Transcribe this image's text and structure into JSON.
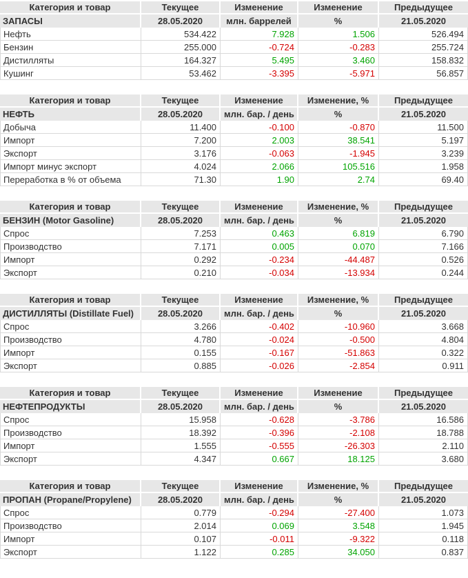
{
  "report": {
    "current_date": "28.05.2020",
    "previous_date": "21.05.2020",
    "colors": {
      "positive": "#00a400",
      "negative": "#d40000",
      "header_bg": "#e7e7e7",
      "text": "#333333",
      "border": "#d9d9d9"
    },
    "tables": [
      {
        "id": "zapasy",
        "columns": [
          "Категория и товар",
          "Текущее",
          "Изменение",
          "Изменение",
          "Предыдущее"
        ],
        "subheader": [
          "ЗАПАСЫ",
          "28.05.2020",
          "млн. баррелей",
          "%",
          "21.05.2020"
        ],
        "rows": [
          [
            "Нефть",
            "534.422",
            "7.928",
            "1.506",
            "526.494"
          ],
          [
            "Бензин",
            "255.000",
            "-0.724",
            "-0.283",
            "255.724"
          ],
          [
            "Дистилляты",
            "164.327",
            "5.495",
            "3.460",
            "158.832"
          ],
          [
            "Кушинг",
            "53.462",
            "-3.395",
            "-5.971",
            "56.857"
          ]
        ]
      },
      {
        "id": "neft",
        "columns": [
          "Категория и товар",
          "Текущее",
          "Изменение",
          "Изменение, %",
          "Предыдущее"
        ],
        "subheader": [
          "НЕФТЬ",
          "28.05.2020",
          "млн. бар. / день",
          "%",
          "21.05.2020"
        ],
        "rows": [
          [
            "Добыча",
            "11.400",
            "-0.100",
            "-0.870",
            "11.500"
          ],
          [
            "Импорт",
            "7.200",
            "2.003",
            "38.541",
            "5.197"
          ],
          [
            "Экспорт",
            "3.176",
            "-0.063",
            "-1.945",
            "3.239"
          ],
          [
            "Импорт минус экспорт",
            "4.024",
            "2.066",
            "105.516",
            "1.958"
          ],
          [
            "Переработка в % от объема",
            "71.30",
            "1.90",
            "2.74",
            "69.40"
          ]
        ]
      },
      {
        "id": "benzin",
        "columns": [
          "Категория и товар",
          "Текущее",
          "Изменение",
          "Изменение, %",
          "Предыдущее"
        ],
        "subheader": [
          "БЕНЗИН (Motor Gasoline)",
          "28.05.2020",
          "млн. бар. / день",
          "%",
          "21.05.2020"
        ],
        "rows": [
          [
            "Спрос",
            "7.253",
            "0.463",
            "6.819",
            "6.790"
          ],
          [
            "Производство",
            "7.171",
            "0.005",
            "0.070",
            "7.166"
          ],
          [
            "Импорт",
            "0.292",
            "-0.234",
            "-44.487",
            "0.526"
          ],
          [
            "Экспорт",
            "0.210",
            "-0.034",
            "-13.934",
            "0.244"
          ]
        ]
      },
      {
        "id": "distillyaty",
        "columns": [
          "Категория и товар",
          "Текущее",
          "Изменение",
          "Изменение, %",
          "Предыдущее"
        ],
        "subheader": [
          "ДИСТИЛЛЯТЫ (Distillate Fuel)",
          "28.05.2020",
          "млн. бар. / день",
          "%",
          "21.05.2020"
        ],
        "rows": [
          [
            "Спрос",
            "3.266",
            "-0.402",
            "-10.960",
            "3.668"
          ],
          [
            "Производство",
            "4.780",
            "-0.024",
            "-0.500",
            "4.804"
          ],
          [
            "Импорт",
            "0.155",
            "-0.167",
            "-51.863",
            "0.322"
          ],
          [
            "Экспорт",
            "0.885",
            "-0.026",
            "-2.854",
            "0.911"
          ]
        ]
      },
      {
        "id": "nefteprodukty",
        "columns": [
          "Категория и товар",
          "Текущее",
          "Изменение",
          "Изменение",
          "Предыдущее"
        ],
        "subheader": [
          "НЕФТЕПРОДУКТЫ",
          "28.05.2020",
          "млн. бар. / день",
          "%",
          "21.05.2020"
        ],
        "rows": [
          [
            "Спрос",
            "15.958",
            "-0.628",
            "-3.786",
            "16.586"
          ],
          [
            "Производство",
            "18.392",
            "-0.396",
            "-2.108",
            "18.788"
          ],
          [
            "Импорт",
            "1.555",
            "-0.555",
            "-26.303",
            "2.110"
          ],
          [
            "Экспорт",
            "4.347",
            "0.667",
            "18.125",
            "3.680"
          ]
        ]
      },
      {
        "id": "propan",
        "columns": [
          "Категория и товар",
          "Текущее",
          "Изменение",
          "Изменение, %",
          "Предыдущее"
        ],
        "subheader": [
          "ПРОПАН (Propane/Propylene)",
          "28.05.2020",
          "млн. бар. / день",
          "%",
          "21.05.2020"
        ],
        "rows": [
          [
            "Спрос",
            "0.779",
            "-0.294",
            "-27.400",
            "1.073"
          ],
          [
            "Производство",
            "2.014",
            "0.069",
            "3.548",
            "1.945"
          ],
          [
            "Импорт",
            "0.107",
            "-0.011",
            "-9.322",
            "0.118"
          ],
          [
            "Экспорт",
            "1.122",
            "0.285",
            "34.050",
            "0.837"
          ]
        ]
      }
    ]
  }
}
